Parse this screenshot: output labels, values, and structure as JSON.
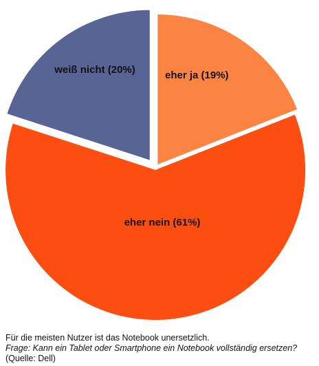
{
  "chart_data": {
    "type": "pie",
    "slices": [
      {
        "label": "eher ja (19%)",
        "value": 19,
        "color": "#fb8443"
      },
      {
        "label": "eher nein (61%)",
        "value": 61,
        "color": "#fc4e10"
      },
      {
        "label": "weiß nicht (20%)",
        "value": 20,
        "color": "#576494"
      }
    ],
    "exploded": true
  },
  "caption": {
    "line1": "Für die meisten Nutzer ist das Notebook unersetzlich.",
    "line2": "Frage: Kann ein Tablet oder Smartphone ein Notebook vollständig ersetzen?",
    "line3": "(Quelle: Dell)"
  }
}
